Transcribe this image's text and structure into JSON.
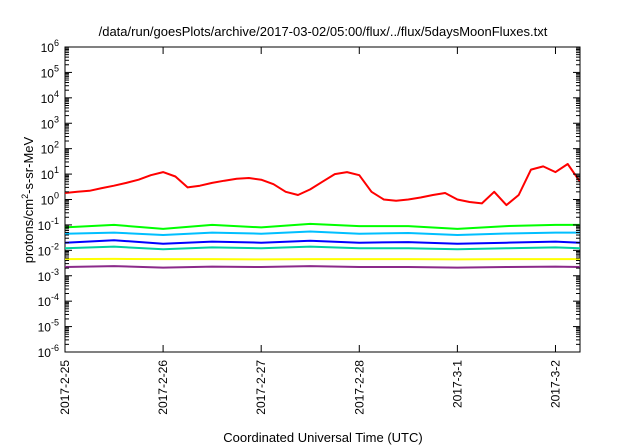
{
  "chart_data": {
    "type": "line",
    "title": "/data/run/goesPlots/archive/2017-03-02/05:00/flux/../flux/5daysMoonFluxes.txt",
    "xlabel": "Coordinated Universal Time (UTC)",
    "ylabel_parts": {
      "pre": "protons/cm",
      "sup": "2",
      "post": "-s-sr-MeV"
    },
    "x_scale": "time",
    "xlim": [
      "2017-02-25 00:00",
      "2017-03-02 06:00"
    ],
    "x_ticks": [
      "2017-2-25",
      "2017-2-26",
      "2017-2-27",
      "2017-2-28",
      "2017-3-1",
      "2017-3-2"
    ],
    "y_scale": "log",
    "ylim": [
      1e-06,
      1000000.0
    ],
    "y_ticks": [
      {
        "base": "10",
        "exp": "-6"
      },
      {
        "base": "10",
        "exp": "-5"
      },
      {
        "base": "10",
        "exp": "-4"
      },
      {
        "base": "10",
        "exp": "-3"
      },
      {
        "base": "10",
        "exp": "-2"
      },
      {
        "base": "10",
        "exp": "-1"
      },
      {
        "base": "10",
        "exp": "0"
      },
      {
        "base": "10",
        "exp": "1"
      },
      {
        "base": "10",
        "exp": "2"
      },
      {
        "base": "10",
        "exp": "3"
      },
      {
        "base": "10",
        "exp": "4"
      },
      {
        "base": "10",
        "exp": "5"
      },
      {
        "base": "10",
        "exp": "6"
      }
    ],
    "grid": false,
    "series": [
      {
        "color": "#ff0000",
        "x": [
          "2017-02-25 00:00",
          "2017-02-25 03:00",
          "2017-02-25 06:00",
          "2017-02-25 09:00",
          "2017-02-25 12:00",
          "2017-02-25 15:00",
          "2017-02-25 18:00",
          "2017-02-25 21:00",
          "2017-02-26 00:00",
          "2017-02-26 03:00",
          "2017-02-26 06:00",
          "2017-02-26 09:00",
          "2017-02-26 12:00",
          "2017-02-26 15:00",
          "2017-02-26 18:00",
          "2017-02-26 21:00",
          "2017-02-27 00:00",
          "2017-02-27 03:00",
          "2017-02-27 06:00",
          "2017-02-27 09:00",
          "2017-02-27 12:00",
          "2017-02-27 15:00",
          "2017-02-27 18:00",
          "2017-02-27 21:00",
          "2017-02-28 00:00",
          "2017-02-28 03:00",
          "2017-02-28 06:00",
          "2017-02-28 09:00",
          "2017-02-28 12:00",
          "2017-02-28 15:00",
          "2017-02-28 18:00",
          "2017-02-28 21:00",
          "2017-03-01 00:00",
          "2017-03-01 03:00",
          "2017-03-01 06:00",
          "2017-03-01 09:00",
          "2017-03-01 12:00",
          "2017-03-01 15:00",
          "2017-03-01 18:00",
          "2017-03-01 21:00",
          "2017-03-02 00:00",
          "2017-03-02 03:00",
          "2017-03-02 06:00"
        ],
        "y": [
          1.8,
          2.0,
          2.2,
          2.8,
          3.5,
          4.5,
          6.0,
          9.0,
          12,
          8,
          3.0,
          3.5,
          4.5,
          5.5,
          6.5,
          7.0,
          6.0,
          4.0,
          2.0,
          1.5,
          2.5,
          5.0,
          10,
          12,
          9,
          2.0,
          1.0,
          0.9,
          1.0,
          1.2,
          1.5,
          1.8,
          1.0,
          0.8,
          0.7,
          2.0,
          0.6,
          1.5,
          15,
          20,
          12,
          25,
          5
        ]
      },
      {
        "color": "#00ff00",
        "x": [
          "2017-02-25 00:00",
          "2017-02-25 12:00",
          "2017-02-26 00:00",
          "2017-02-26 12:00",
          "2017-02-27 00:00",
          "2017-02-27 12:00",
          "2017-02-28 00:00",
          "2017-02-28 12:00",
          "2017-03-01 00:00",
          "2017-03-01 12:00",
          "2017-03-02 00:00",
          "2017-03-02 06:00"
        ],
        "y": [
          0.08,
          0.1,
          0.07,
          0.1,
          0.08,
          0.11,
          0.09,
          0.09,
          0.07,
          0.09,
          0.1,
          0.1
        ]
      },
      {
        "color": "#00bfff",
        "x": [
          "2017-02-25 00:00",
          "2017-02-25 12:00",
          "2017-02-26 00:00",
          "2017-02-26 12:00",
          "2017-02-27 00:00",
          "2017-02-27 12:00",
          "2017-02-28 00:00",
          "2017-02-28 12:00",
          "2017-03-01 00:00",
          "2017-03-01 12:00",
          "2017-03-02 00:00",
          "2017-03-02 06:00"
        ],
        "y": [
          0.045,
          0.05,
          0.04,
          0.05,
          0.045,
          0.055,
          0.045,
          0.048,
          0.04,
          0.046,
          0.05,
          0.05
        ]
      },
      {
        "color": "#0000ff",
        "x": [
          "2017-02-25 00:00",
          "2017-02-25 12:00",
          "2017-02-26 00:00",
          "2017-02-26 12:00",
          "2017-02-27 00:00",
          "2017-02-27 12:00",
          "2017-02-28 00:00",
          "2017-02-28 12:00",
          "2017-03-01 00:00",
          "2017-03-01 12:00",
          "2017-03-02 00:00",
          "2017-03-02 06:00"
        ],
        "y": [
          0.02,
          0.025,
          0.018,
          0.022,
          0.02,
          0.024,
          0.02,
          0.021,
          0.018,
          0.02,
          0.022,
          0.02
        ]
      },
      {
        "color": "#00d0a0",
        "x": [
          "2017-02-25 00:00",
          "2017-02-25 12:00",
          "2017-02-26 00:00",
          "2017-02-26 12:00",
          "2017-02-27 00:00",
          "2017-02-27 12:00",
          "2017-02-28 00:00",
          "2017-02-28 12:00",
          "2017-03-01 00:00",
          "2017-03-01 12:00",
          "2017-03-02 00:00",
          "2017-03-02 06:00"
        ],
        "y": [
          0.012,
          0.014,
          0.011,
          0.013,
          0.012,
          0.014,
          0.012,
          0.012,
          0.011,
          0.012,
          0.013,
          0.012
        ]
      },
      {
        "color": "#ffff00",
        "x": [
          "2017-02-25 00:00",
          "2017-02-25 12:00",
          "2017-02-26 00:00",
          "2017-02-26 12:00",
          "2017-02-27 00:00",
          "2017-02-27 12:00",
          "2017-02-28 00:00",
          "2017-02-28 12:00",
          "2017-03-01 00:00",
          "2017-03-01 12:00",
          "2017-03-02 00:00",
          "2017-03-02 06:00"
        ],
        "y": [
          0.0045,
          0.0046,
          0.0045,
          0.0045,
          0.0044,
          0.0045,
          0.0045,
          0.0045,
          0.0044,
          0.0045,
          0.0045,
          0.0045
        ]
      },
      {
        "color": "#8b2a8b",
        "x": [
          "2017-02-25 00:00",
          "2017-02-25 12:00",
          "2017-02-26 00:00",
          "2017-02-26 12:00",
          "2017-02-27 00:00",
          "2017-02-27 12:00",
          "2017-02-28 00:00",
          "2017-02-28 12:00",
          "2017-03-01 00:00",
          "2017-03-01 12:00",
          "2017-03-02 00:00",
          "2017-03-02 06:00"
        ],
        "y": [
          0.0022,
          0.0024,
          0.0021,
          0.0023,
          0.0022,
          0.0024,
          0.0022,
          0.0022,
          0.0021,
          0.0022,
          0.0023,
          0.0022
        ]
      }
    ]
  }
}
